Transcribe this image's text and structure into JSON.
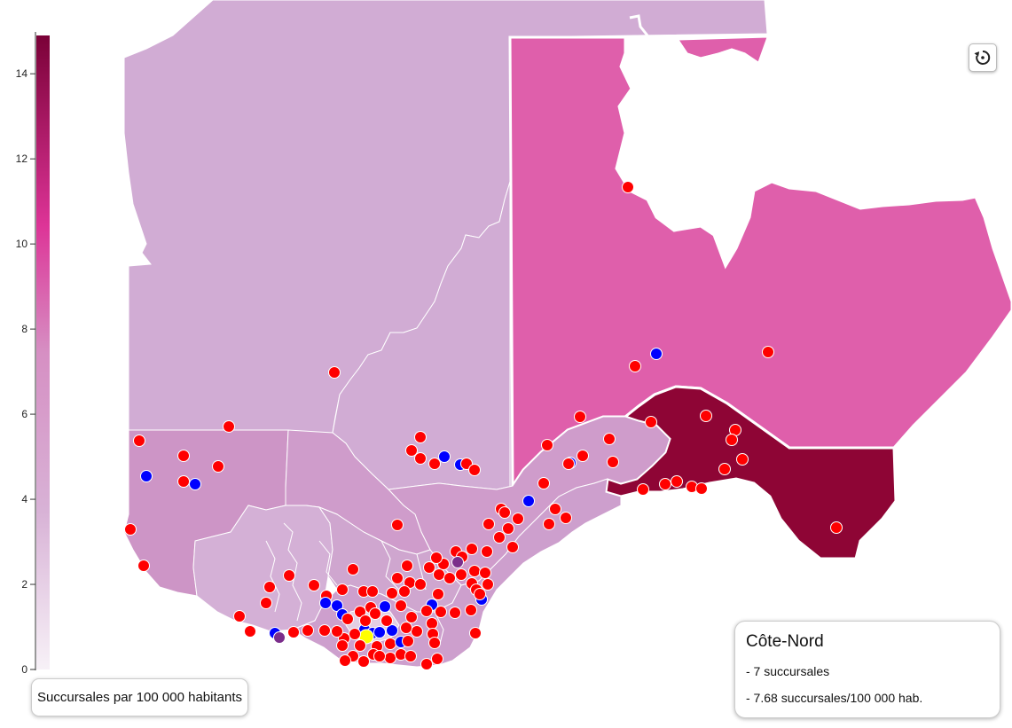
{
  "legend": {
    "title": "Succursales par 100 000 habitants",
    "ticks": [
      0,
      2,
      4,
      6,
      8,
      10,
      12,
      14
    ],
    "min": 0,
    "max": 14.9,
    "color_low": "#f7f1f7",
    "color_mid": "#dd3497",
    "color_high": "#7a0137"
  },
  "colors": {
    "point_primary": "#ff0000",
    "point_secondary": "#0000ff",
    "point_other": "#7b2d8b",
    "point_selected": "#ffff00",
    "point_stroke": "#ffffff"
  },
  "info": {
    "region": "Côte-Nord",
    "count_line": "- 7 succursales",
    "rate_line": "- 7.68 succursales/100 000 hab."
  },
  "reset_icon": "reset-rotate-icon"
}
